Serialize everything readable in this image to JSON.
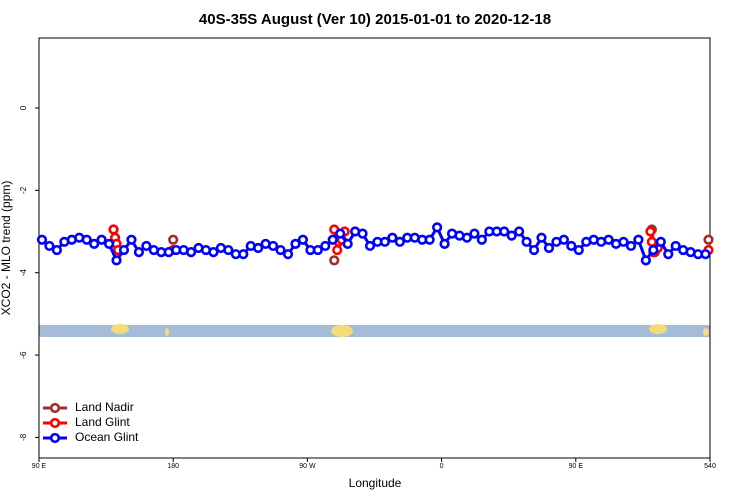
{
  "chart_data": {
    "type": "line",
    "title": "40S-35S August (Ver 10)   2015-01-01 to 2020-12-18",
    "x_label": "Longitude",
    "y_label": "XCO2 - MLO trend (ppm)",
    "xlim": [
      90,
      540
    ],
    "ylim": [
      -8.5,
      1.7
    ],
    "xticks": [
      {
        "value": 90,
        "label": "90 E"
      },
      180,
      {
        "value": 270,
        "label": "90 W"
      },
      {
        "value": 360,
        "label": "0"
      },
      {
        "value": 450,
        "label": "90 E"
      },
      540
    ],
    "yticks": [
      0,
      -2,
      -4,
      -6,
      -8
    ],
    "grid": false,
    "legend": "bottom-left",
    "series": [
      {
        "name": "Land Nadir",
        "color": "#a52a2a",
        "x": [
          140,
          142,
          null,
          180,
          null,
          288,
          null,
          501,
          503,
          null,
          539
        ],
        "values": [
          -2.95,
          -3.3,
          null,
          -3.2,
          null,
          -3.7,
          null,
          -2.95,
          -3.5,
          null,
          -3.2
        ]
      },
      {
        "name": "Land Glint",
        "color": "#ff0000",
        "x": [
          140,
          141,
          142,
          143,
          null,
          180,
          null,
          288,
          290,
          291,
          293,
          295,
          null,
          500,
          501,
          502,
          505,
          null,
          539
        ],
        "values": [
          -2.95,
          -3.15,
          -3.3,
          -3.45,
          null,
          -3.45,
          null,
          -2.95,
          -3.45,
          -3.25,
          -3.2,
          -3.0,
          null,
          -3.0,
          -3.25,
          -3.5,
          -3.4,
          null,
          -3.45
        ]
      },
      {
        "name": "Ocean Glint",
        "color": "#0000ff",
        "x": [
          92,
          97,
          102,
          107,
          112,
          117,
          122,
          127,
          132,
          137,
          142,
          147,
          152,
          157,
          162,
          167,
          172,
          177,
          182,
          187,
          192,
          197,
          202,
          207,
          212,
          217,
          222,
          227,
          232,
          237,
          242,
          247,
          252,
          257,
          262,
          267,
          272,
          277,
          282,
          287,
          292,
          297,
          302,
          307,
          312,
          317,
          322,
          327,
          332,
          337,
          342,
          347,
          352,
          357,
          362,
          367,
          372,
          377,
          382,
          387,
          392,
          397,
          402,
          407,
          412,
          417,
          422,
          427,
          432,
          437,
          442,
          447,
          452,
          457,
          462,
          467,
          472,
          477,
          482,
          487,
          492,
          497,
          502,
          507,
          512,
          517,
          522,
          527,
          532,
          537
        ],
        "values": [
          -3.2,
          -3.35,
          -3.45,
          -3.25,
          -3.2,
          -3.15,
          -3.2,
          -3.3,
          -3.2,
          -3.3,
          -3.7,
          -3.45,
          -3.2,
          -3.5,
          -3.35,
          -3.45,
          -3.5,
          -3.5,
          -3.45,
          -3.45,
          -3.5,
          -3.4,
          -3.45,
          -3.5,
          -3.4,
          -3.45,
          -3.55,
          -3.55,
          -3.35,
          -3.4,
          -3.3,
          -3.35,
          -3.45,
          -3.55,
          -3.3,
          -3.2,
          -3.45,
          -3.45,
          -3.35,
          -3.2,
          -3.05,
          -3.3,
          -3.0,
          -3.05,
          -3.35,
          -3.25,
          -3.25,
          -3.15,
          -3.25,
          -3.15,
          -3.15,
          -3.2,
          -3.2,
          -2.9,
          -3.3,
          -3.05,
          -3.1,
          -3.15,
          -3.05,
          -3.2,
          -3.0,
          -3.0,
          -3.0,
          -3.1,
          -3.0,
          -3.25,
          -3.45,
          -3.15,
          -3.4,
          -3.25,
          -3.2,
          -3.35,
          -3.45,
          -3.25,
          -3.2,
          -3.25,
          -3.2,
          -3.3,
          -3.25,
          -3.35,
          -3.2,
          -3.7,
          -3.45,
          -3.25,
          -3.55,
          -3.35,
          -3.45,
          -3.5,
          -3.55,
          -3.55
        ]
      }
    ]
  }
}
